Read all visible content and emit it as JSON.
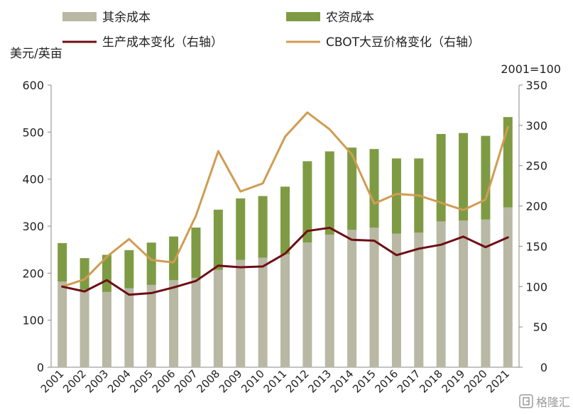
{
  "chart_data": {
    "type": "bar+line",
    "x": [
      "2001",
      "2002",
      "2003",
      "2004",
      "2005",
      "2006",
      "2007",
      "2008",
      "2009",
      "2010",
      "2011",
      "2012",
      "2013",
      "2014",
      "2015",
      "2016",
      "2017",
      "2018",
      "2019",
      "2020",
      "2021"
    ],
    "left_axis": {
      "label": "美元/英亩",
      "ticks": [
        "0",
        "100",
        "200",
        "300",
        "400",
        "500",
        "600"
      ],
      "range": [
        0,
        600
      ]
    },
    "right_axis": {
      "label": "2001=100",
      "ticks": [
        "0",
        "50",
        "100",
        "150",
        "200",
        "250",
        "300",
        "350"
      ],
      "range": [
        0,
        350
      ]
    },
    "bar_series": [
      {
        "name": "其余成本",
        "color": "#b8b8a4",
        "values": [
          182,
          165,
          160,
          168,
          175,
          185,
          190,
          207,
          228,
          233,
          240,
          265,
          282,
          292,
          297,
          284,
          286,
          310,
          312,
          314,
          340
        ]
      },
      {
        "name": "农资成本",
        "color": "#7e9b44",
        "values": [
          82,
          67,
          79,
          81,
          90,
          93,
          107,
          128,
          131,
          131,
          144,
          173,
          177,
          175,
          167,
          160,
          158,
          186,
          186,
          178,
          192
        ]
      }
    ],
    "line_series": [
      {
        "name": "生产成本变化（右轴）",
        "color": "#6e0d14",
        "axis": "right",
        "values": [
          100,
          94,
          108,
          90,
          92,
          99,
          107,
          126,
          124,
          125,
          141,
          169,
          173,
          158,
          157,
          139,
          147,
          152,
          162,
          149,
          161
        ]
      },
      {
        "name": "CBOT大豆价格变化（右轴）",
        "color": "#d09c52",
        "axis": "right",
        "values": [
          100,
          109,
          137,
          159,
          133,
          130,
          188,
          268,
          218,
          228,
          286,
          316,
          295,
          264,
          203,
          215,
          213,
          204,
          195,
          208,
          298
        ]
      }
    ],
    "legend_placement": "top",
    "watermark": "格隆汇"
  }
}
